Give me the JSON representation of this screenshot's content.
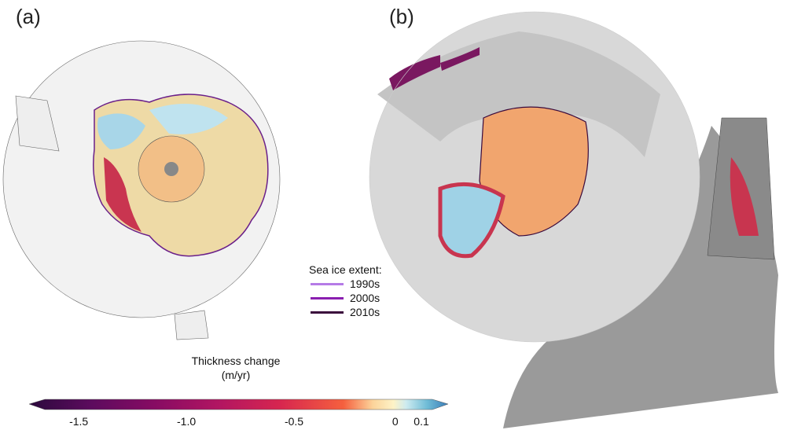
{
  "panels": {
    "a": "(a)",
    "b": "(b)"
  },
  "legend": {
    "title": "Sea ice extent:",
    "items": [
      {
        "label": "1990s",
        "color": "#b57be6"
      },
      {
        "label": "2000s",
        "color": "#8a1fb0"
      },
      {
        "label": "2010s",
        "color": "#3a0a3c"
      }
    ]
  },
  "colorbar": {
    "title": "Thickness change",
    "units": "(m/yr)",
    "ticks": [
      "-1.5",
      "-1.0",
      "-0.5",
      "0",
      "0.1"
    ],
    "range": [
      -1.65,
      0.15
    ],
    "extend": "both",
    "colors": [
      "#2b0a3d",
      "#5d0b5e",
      "#870b63",
      "#b11562",
      "#d7264f",
      "#f5603e",
      "#fcd39a",
      "#fdf3c7",
      "#cdebf0",
      "#6fbcd6",
      "#3a7cb8"
    ]
  }
}
